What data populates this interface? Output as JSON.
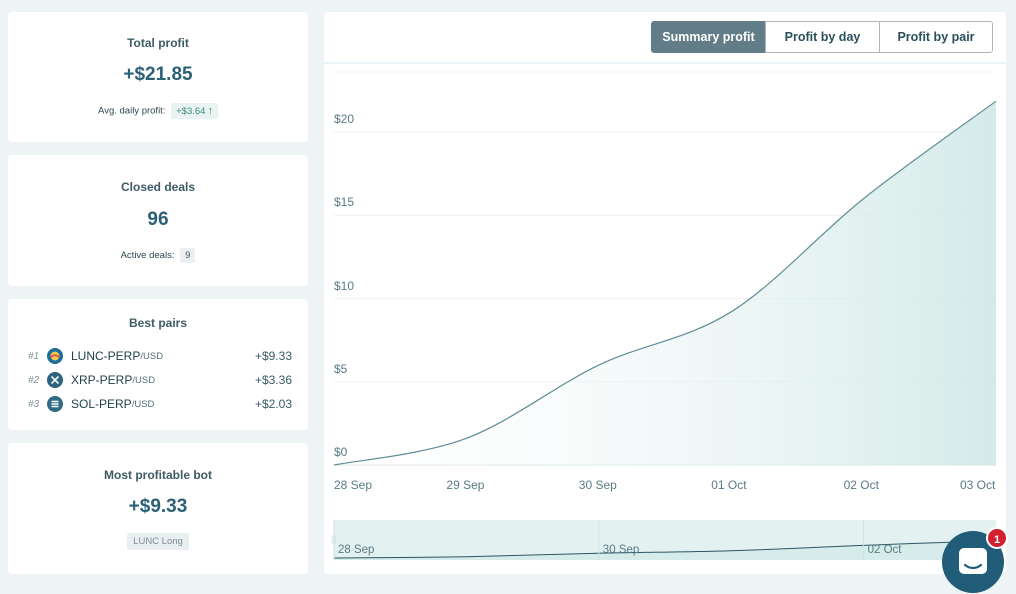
{
  "total_profit": {
    "title": "Total profit",
    "value": "+$21.85",
    "avg_label": "Avg. daily profit:",
    "avg_value": "+$3.64",
    "trend_icon": "arrow-up-icon"
  },
  "closed_deals": {
    "title": "Closed deals",
    "value": "96",
    "active_label": "Active deals:",
    "active_value": "9"
  },
  "best_pairs": {
    "title": "Best pairs",
    "items": [
      {
        "rank": "#1",
        "pair": "LUNC-PERP",
        "quote": "/USD",
        "value": "+$9.33",
        "icon": "lunc-coin-icon",
        "color": "#1d6f9a"
      },
      {
        "rank": "#2",
        "pair": "XRP-PERP",
        "quote": "/USD",
        "value": "+$3.36",
        "icon": "xrp-coin-icon",
        "color": "#2c6482"
      },
      {
        "rank": "#3",
        "pair": "SOL-PERP",
        "quote": "/USD",
        "value": "+$2.03",
        "icon": "sol-coin-icon",
        "color": "#2f6a86"
      }
    ]
  },
  "best_bot": {
    "title": "Most profitable bot",
    "value": "+$9.33",
    "bot_name": "LUNC Long"
  },
  "tabs": [
    {
      "label": "Summary profit",
      "active": true
    },
    {
      "label": "Profit by day",
      "active": false
    },
    {
      "label": "Profit by pair",
      "active": false
    }
  ],
  "chart_data": {
    "type": "area",
    "title": "",
    "x": [
      "28 Sep",
      "29 Sep",
      "30 Sep",
      "01 Oct",
      "02 Oct",
      "03 Oct"
    ],
    "series": [
      {
        "values": [
          0.0,
          1.6,
          6.0,
          9.2,
          16.0,
          21.85
        ]
      }
    ],
    "y_ticks": [
      "$0",
      "$5",
      "$10",
      "$15",
      "$20"
    ],
    "ylim": [
      0,
      25
    ],
    "grid": true,
    "navigator_labels": [
      "28 Sep",
      "30 Sep",
      "02 Oct"
    ],
    "colors": {
      "line": "#5f8d96",
      "fill": "#d3eae8"
    }
  },
  "chat": {
    "icon": "chat-icon",
    "badge": "1"
  }
}
